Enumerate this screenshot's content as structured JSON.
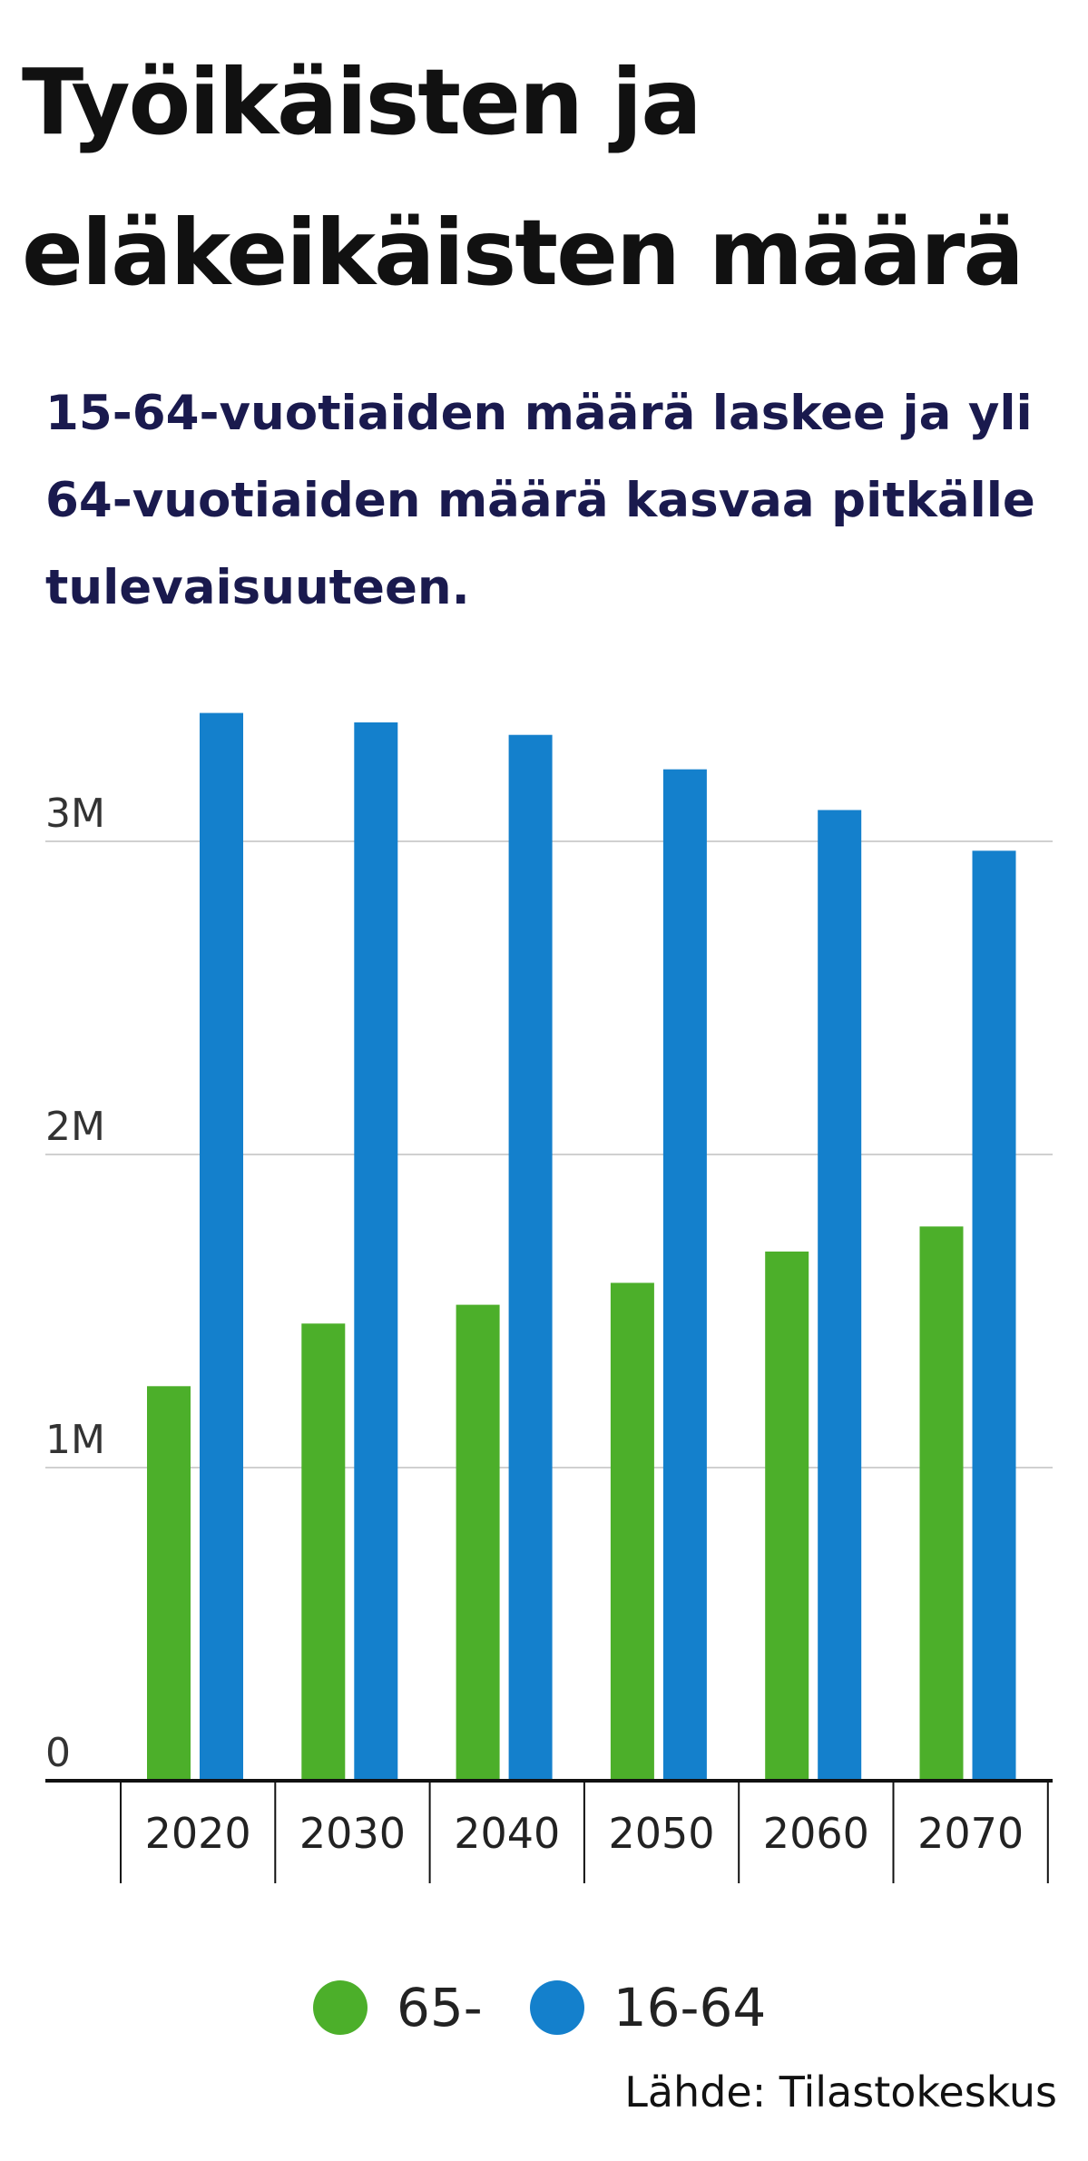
{
  "title": "Työikäisten ja eläkeikäisten määrä",
  "subtitle": "15-64-vuotiaiden määrä laskee ja yli 64-vuotiaiden määrä kasvaa pitkälle tulevaisuuteen.",
  "source": "Lähde: Tilastokeskus",
  "colors": {
    "series_65_plus": "#4caf2a",
    "series_16_64": "#1480cc",
    "grid": "#d0d0d0",
    "axis": "#111111"
  },
  "chart_data": {
    "type": "bar",
    "categories": [
      "2020",
      "2030",
      "2040",
      "2050",
      "2060",
      "2070"
    ],
    "series": [
      {
        "name": "65-",
        "values": [
          1.26,
          1.46,
          1.52,
          1.59,
          1.69,
          1.77
        ]
      },
      {
        "name": "16-64",
        "values": [
          3.41,
          3.38,
          3.34,
          3.23,
          3.1,
          2.97
        ]
      }
    ],
    "ylim": [
      0,
      3.5
    ],
    "yticks": [
      0,
      1,
      2,
      3
    ],
    "ytick_labels": [
      "0",
      "1M",
      "2M",
      "3M"
    ],
    "grid": true,
    "legend": "bottom"
  }
}
